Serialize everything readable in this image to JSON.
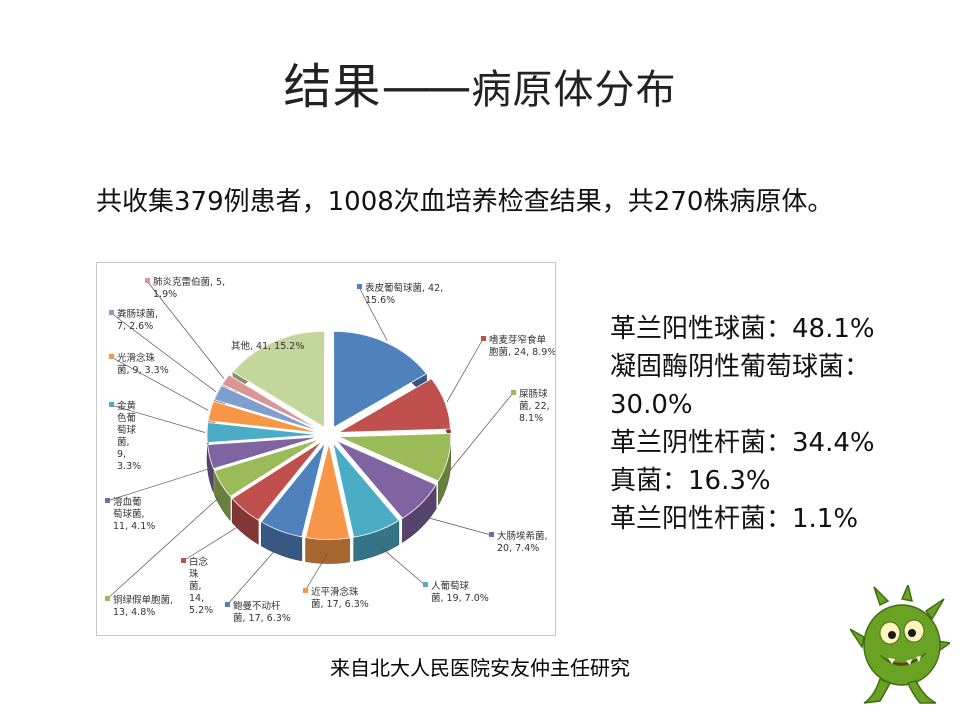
{
  "slide": {
    "title_main": "结果",
    "title_sep": "——",
    "title_sub": "病原体分布",
    "intro": "共收集379例患者，1008次血培养检查结果，共270株病原体。",
    "source": "来自北大人民医院安友仲主任研究",
    "mascot_icon": "green-germ-mascot-icon"
  },
  "stats": [
    "革兰阳性球菌：48.1%",
    "凝固酶阴性葡萄球菌：",
    "30.0%",
    "革兰阴性杆菌：34.4%",
    "真菌：16.3%",
    "革兰阳性杆菌：1.1%"
  ],
  "chart_data": {
    "type": "pie",
    "title": "",
    "style": "3d-exploded",
    "slices": [
      {
        "name": "表皮葡萄球菌",
        "value": 42,
        "percent": "15.6%",
        "label": "表皮葡萄球菌, 42, 15.6%",
        "color": "#4f81bd"
      },
      {
        "name": "嗜麦芽窄食单胞菌",
        "value": 24,
        "percent": "8.9%",
        "label": "嗜麦芽窄食单胞菌, 24, 8.9%",
        "color": "#c0504d"
      },
      {
        "name": "屎肠球菌",
        "value": 22,
        "percent": "8.1%",
        "label": "屎肠球菌, 22, 8.1%",
        "color": "#9bbb59"
      },
      {
        "name": "大肠埃希菌",
        "value": 20,
        "percent": "7.4%",
        "label": "大肠埃希菌, 20, 7.4%",
        "color": "#8064a2"
      },
      {
        "name": "人葡萄球菌",
        "value": 19,
        "percent": "7.0%",
        "label": "人葡萄球菌, 19, 7.0%",
        "color": "#4bacc6"
      },
      {
        "name": "近平滑念珠菌",
        "value": 17,
        "percent": "6.3%",
        "label": "近平滑念珠菌, 17, 6.3%",
        "color": "#f79646"
      },
      {
        "name": "鲍曼不动杆菌",
        "value": 17,
        "percent": "6.3%",
        "label": "鲍曼不动杆菌, 17, 6.3%",
        "color": "#4f81bd"
      },
      {
        "name": "白念珠菌",
        "value": 14,
        "percent": "5.2%",
        "label": "白念珠菌, 14, 5.2%",
        "color": "#c0504d"
      },
      {
        "name": "铜绿假单胞菌",
        "value": 13,
        "percent": "4.8%",
        "label": "铜绿假单胞菌, 13, 4.8%",
        "color": "#9bbb59"
      },
      {
        "name": "溶血葡萄球菌",
        "value": 11,
        "percent": "4.1%",
        "label": "溶血葡萄球菌, 11, 4.1%",
        "color": "#8064a2"
      },
      {
        "name": "金黄色葡萄球菌",
        "value": 9,
        "percent": "3.3%",
        "label": "金黄色葡萄球菌, 9, 3.3%",
        "color": "#4bacc6"
      },
      {
        "name": "光滑念珠菌",
        "value": 9,
        "percent": "3.3%",
        "label": "光滑念珠菌, 9, 3.3%",
        "color": "#f79646"
      },
      {
        "name": "粪肠球菌",
        "value": 7,
        "percent": "2.6%",
        "label": "粪肠球菌, 7, 2.6%",
        "color": "#7f9fd0"
      },
      {
        "name": "肺炎克雷伯菌",
        "value": 5,
        "percent": "1.9%",
        "label": "肺炎克雷伯菌, 5, 1.9%",
        "color": "#d99694"
      },
      {
        "name": "其他",
        "value": 41,
        "percent": "15.2%",
        "label": "其他, 41, 15.2%",
        "color": "#c3d69b"
      }
    ]
  }
}
